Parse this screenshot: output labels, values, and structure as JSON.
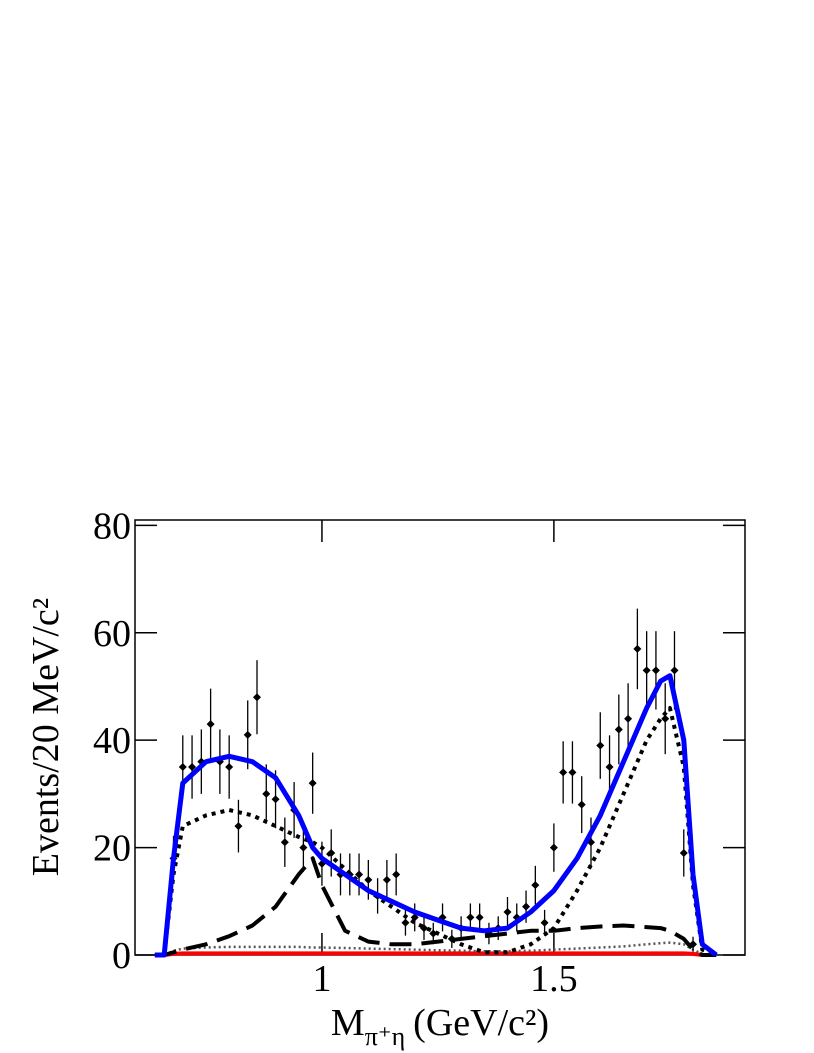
{
  "chart_data": {
    "type": "scatter",
    "ylabel": "Events/20 MeV/c²",
    "xlabel": {
      "main": "M",
      "subscript": "π⁺η",
      "unit": "(GeV/c²)"
    },
    "xlim": [
      0.597,
      1.912
    ],
    "ylim": [
      0,
      81
    ],
    "xticks": [
      1,
      1.5
    ],
    "yticks": [
      0,
      20,
      40,
      60,
      80
    ],
    "points": {
      "color": "#000000",
      "x": [
        0.68,
        0.7,
        0.72,
        0.74,
        0.76,
        0.78,
        0.8,
        0.82,
        0.84,
        0.86,
        0.88,
        0.9,
        0.92,
        0.94,
        0.96,
        0.98,
        1.0,
        1.02,
        1.04,
        1.06,
        1.08,
        1.1,
        1.12,
        1.14,
        1.16,
        1.18,
        1.2,
        1.22,
        1.24,
        1.26,
        1.28,
        1.3,
        1.32,
        1.34,
        1.36,
        1.38,
        1.4,
        1.42,
        1.44,
        1.46,
        1.48,
        1.5,
        1.52,
        1.54,
        1.56,
        1.58,
        1.6,
        1.62,
        1.64,
        1.66,
        1.68,
        1.7,
        1.72,
        1.74,
        1.76,
        1.78,
        1.8
      ],
      "values": [
        18,
        35,
        35,
        36,
        43,
        36,
        35,
        24,
        41,
        48,
        30,
        29,
        21,
        27,
        20,
        32,
        17,
        19,
        15,
        15,
        15,
        14,
        11,
        14,
        15,
        6,
        7,
        5,
        4,
        7,
        3,
        5,
        7,
        7,
        4,
        5,
        8,
        7,
        9,
        13,
        6,
        20,
        34,
        34,
        28,
        21,
        39,
        35,
        42,
        44,
        57,
        53,
        53,
        44,
        53,
        19,
        2
      ],
      "errors": [
        4.2,
        5.9,
        5.9,
        6,
        6.6,
        6,
        5.9,
        4.9,
        6.4,
        6.9,
        5.5,
        5.4,
        4.6,
        5.2,
        4.5,
        5.7,
        4.1,
        4.4,
        3.9,
        3.9,
        3.9,
        3.7,
        3.3,
        3.7,
        3.9,
        2.4,
        2.6,
        2.2,
        2,
        2.6,
        1.7,
        2.2,
        2.6,
        2.6,
        2,
        2.2,
        2.8,
        2.6,
        3,
        3.6,
        2.4,
        4.5,
        5.8,
        5.8,
        5.3,
        4.6,
        6.2,
        5.9,
        6.5,
        6.6,
        7.5,
        7.3,
        7.3,
        6.6,
        7.3,
        4.4,
        1.4
      ]
    },
    "x": [
      0.64,
      0.66,
      0.68,
      0.7,
      0.75,
      0.8,
      0.85,
      0.9,
      0.95,
      0.98,
      1.0,
      1.05,
      1.1,
      1.15,
      1.2,
      1.25,
      1.3,
      1.35,
      1.4,
      1.45,
      1.5,
      1.55,
      1.6,
      1.65,
      1.7,
      1.73,
      1.75,
      1.78,
      1.8,
      1.82,
      1.85
    ],
    "series": [
      {
        "color": "#ff0000",
        "style": "solid",
        "width": 4,
        "values": [
          0,
          0,
          0.2,
          0.3,
          0.3,
          0.3,
          0.3,
          0.3,
          0.3,
          0.3,
          0.3,
          0.3,
          0.3,
          0.3,
          0.3,
          0.3,
          0.3,
          0.3,
          0.3,
          0.3,
          0.3,
          0.3,
          0.3,
          0.3,
          0.3,
          0.3,
          0.3,
          0.3,
          0.2,
          0,
          0
        ]
      },
      {
        "color": "#555555",
        "style": "finedot",
        "width": 2.5,
        "values": [
          0,
          0,
          0.8,
          1.2,
          1.4,
          1.5,
          1.5,
          1.5,
          1.5,
          1.4,
          1.4,
          1.3,
          1.2,
          1.1,
          1,
          0.9,
          0.8,
          0.7,
          0.7,
          0.8,
          1,
          1.2,
          1.4,
          1.6,
          2,
          2.2,
          2.3,
          2,
          1,
          0.2,
          0
        ]
      },
      {
        "color": "#000000",
        "style": "dashed",
        "width": 4,
        "values": [
          0,
          0,
          0.5,
          1,
          2,
          3.5,
          5.5,
          9,
          15,
          18,
          13,
          4.5,
          2.5,
          2,
          2,
          2.5,
          3,
          3.5,
          4,
          4.5,
          4.5,
          5,
          5.3,
          5.5,
          5.2,
          5,
          4.5,
          3,
          1,
          0,
          0
        ]
      },
      {
        "color": "#000000",
        "style": "dotted",
        "width": 4,
        "values": [
          0,
          0,
          15,
          24,
          26,
          27,
          26,
          24,
          22,
          21,
          20,
          16,
          12,
          9,
          6,
          4,
          2,
          0.5,
          0.5,
          2,
          5,
          12,
          20,
          30,
          40,
          44,
          46,
          35,
          13,
          1,
          0
        ]
      },
      {
        "color": "#0000ff",
        "style": "solid",
        "width": 5,
        "values": [
          0,
          0,
          18,
          32,
          36,
          37,
          36,
          33,
          26,
          20,
          18,
          15,
          12,
          10,
          8,
          6.5,
          5,
          4.5,
          5,
          8,
          12,
          18,
          26,
          36,
          46,
          51,
          52,
          40,
          15,
          2,
          0
        ]
      }
    ]
  }
}
